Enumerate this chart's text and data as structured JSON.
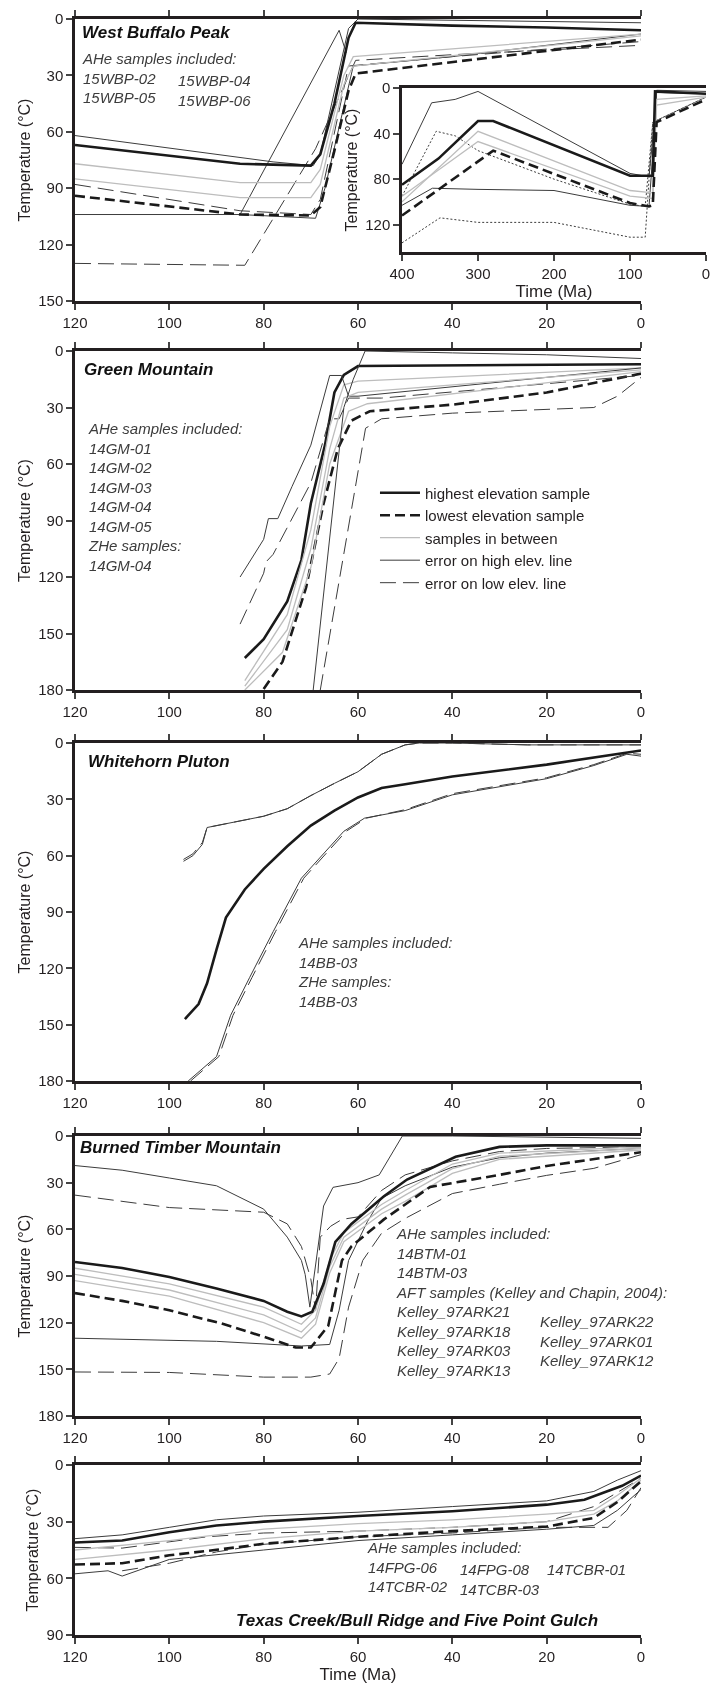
{
  "chart_data": [
    {
      "type": "line",
      "title": "West Buffalo Peak",
      "ylabel": "Temperature (°C)",
      "annotations": [
        "AHe samples included:\n15WBP-02\n15WBP-05",
        "15WBP-04\n15WBP-06"
      ],
      "xlim": [
        120,
        0
      ],
      "ylim": [
        150,
        0
      ],
      "xticks": [
        120,
        100,
        80,
        60,
        40,
        20,
        0
      ],
      "yticks": [
        0,
        30,
        60,
        90,
        120,
        150
      ],
      "series": [
        {
          "color": "#3c3c3c",
          "line_style": "solid",
          "x": [
            120,
            78,
            69.5,
            68,
            62,
            60,
            0
          ],
          "values": [
            62,
            76,
            78,
            72,
            5,
            0,
            2
          ]
        },
        {
          "color": "#3c3c3c",
          "line_style": "solid",
          "x": [
            120,
            85,
            69,
            67,
            61,
            40,
            0
          ],
          "values": [
            104,
            104,
            106,
            90,
            25,
            20,
            8
          ]
        },
        {
          "color": "#3c3c3c",
          "line_style": "solid",
          "x": [
            85,
            64,
            62.5
          ],
          "values": [
            104,
            6,
            18
          ]
        },
        {
          "color": "#3c3c3c",
          "line_style": "dashed",
          "x": [
            120,
            85,
            70,
            68,
            62,
            40,
            0
          ],
          "values": [
            88,
            102,
            104,
            96,
            25,
            20,
            12
          ]
        },
        {
          "color": "#3c3c3c",
          "line_style": "dashed",
          "x": [
            120,
            84,
            69,
            60.5,
            40,
            0
          ],
          "values": [
            130,
            131,
            69,
            22,
            19,
            14
          ]
        },
        {
          "color": "#bdbdbd",
          "line_style": "solid",
          "x": [
            120,
            85,
            70,
            68,
            63,
            61,
            0
          ],
          "values": [
            77,
            87,
            87,
            80,
            30,
            20,
            8
          ]
        },
        {
          "color": "#bdbdbd",
          "line_style": "solid",
          "x": [
            120,
            85,
            70,
            68,
            63,
            61,
            0
          ],
          "values": [
            85,
            95,
            95,
            88,
            35,
            25,
            9
          ]
        },
        {
          "color": "#1a1a1a",
          "line_style": "solid",
          "x": [
            120,
            85,
            70,
            68,
            65,
            62,
            60.5,
            40,
            20,
            0
          ],
          "values": [
            67,
            77,
            78,
            72,
            45,
            10,
            2,
            3.5,
            4.5,
            6
          ]
        },
        {
          "color": "#1a1a1a",
          "line_style": "dashed",
          "x": [
            120,
            85,
            70,
            68,
            65,
            62,
            60.5,
            0
          ],
          "values": [
            94,
            104,
            104.5,
            100,
            70,
            38,
            29,
            11
          ]
        }
      ]
    },
    {
      "type": "line",
      "xlabel": "Time (Ma)",
      "ylabel": "Temperature (°C)",
      "xlim": [
        400,
        0
      ],
      "ylim": [
        144,
        0
      ],
      "xticks": [
        400,
        300,
        200,
        100,
        0
      ],
      "yticks": [
        0,
        40,
        80,
        120
      ],
      "series": [
        {
          "color": "#3c3c3c",
          "line_style": "solid",
          "x": [
            400,
            361,
            330,
            300,
            100,
            75,
            68,
            65,
            0
          ],
          "values": [
            67,
            13,
            10,
            3,
            75,
            78,
            30,
            2,
            3
          ]
        },
        {
          "color": "#3c3c3c",
          "line_style": "solid",
          "x": [
            400,
            360,
            300,
            200,
            100,
            75,
            68,
            65,
            0
          ],
          "values": [
            103,
            88,
            89,
            90,
            103,
            104,
            40,
            4,
            5
          ]
        },
        {
          "color": "#3c3c3c",
          "line_style": "dotted",
          "x": [
            400,
            355,
            330,
            300,
            200,
            100,
            80,
            70,
            0
          ],
          "values": [
            95,
            38,
            42,
            55,
            80,
            102,
            104,
            30,
            8
          ]
        },
        {
          "color": "#3c3c3c",
          "line_style": "dotted",
          "x": [
            400,
            350,
            300,
            200,
            100,
            80,
            70,
            0
          ],
          "values": [
            136,
            114,
            118,
            118,
            131,
            131,
            30,
            8
          ]
        },
        {
          "color": "#bdbdbd",
          "line_style": "solid",
          "x": [
            400,
            300,
            100,
            70,
            65,
            0
          ],
          "values": [
            100,
            38,
            90,
            92,
            10,
            7
          ]
        },
        {
          "color": "#bdbdbd",
          "line_style": "solid",
          "x": [
            400,
            300,
            100,
            70,
            65,
            0
          ],
          "values": [
            95,
            47,
            95,
            97,
            15,
            8
          ]
        },
        {
          "color": "#1a1a1a",
          "line_style": "solid",
          "x": [
            400,
            352,
            300,
            280,
            100,
            80,
            70,
            67,
            0
          ],
          "values": [
            85,
            62,
            29,
            29,
            77,
            77,
            77,
            3,
            5
          ]
        },
        {
          "color": "#1a1a1a",
          "line_style": "dashed",
          "x": [
            400,
            280,
            100,
            75,
            70,
            65,
            0
          ],
          "values": [
            112,
            55,
            101,
            104,
            103,
            30,
            10
          ]
        }
      ]
    },
    {
      "type": "line",
      "title": "Green Mountain",
      "ylabel": "Temperature (°C)",
      "annotations": [
        "AHe samples included:\n14GM-01\n14GM-02\n14GM-03\n14GM-04\n14GM-05\nZHe samples:\n14GM-04"
      ],
      "xlim": [
        120,
        0
      ],
      "ylim": [
        180,
        0
      ],
      "xticks": [
        120,
        100,
        80,
        60,
        40,
        20,
        0
      ],
      "yticks": [
        0,
        30,
        60,
        90,
        120,
        150,
        180
      ],
      "legend": "right",
      "series": [
        {
          "name": "highest elevation sample",
          "color": "#1a1a1a",
          "line_style": "solid",
          "x": [
            84,
            80,
            75,
            72,
            70,
            67,
            65,
            63,
            60,
            0
          ],
          "values": [
            163,
            153,
            133,
            111,
            81,
            50,
            22,
            12.7,
            8,
            7
          ]
        },
        {
          "name": "lowest elevation sample",
          "color": "#1a1a1a",
          "line_style": "dashed",
          "x": [
            80,
            76,
            71,
            67.3,
            64.3,
            61.4,
            57.5,
            40,
            20,
            0
          ],
          "values": [
            179.5,
            165,
            125.5,
            81,
            52,
            37,
            32,
            28.5,
            22,
            12
          ]
        },
        {
          "name": "samples in between",
          "color": "#bdbdbd",
          "line_style": "solid",
          "x": [
            84,
            75,
            70,
            66,
            63,
            60,
            0
          ],
          "values": [
            175,
            140,
            95,
            40,
            18,
            16,
            9
          ]
        },
        {
          "name": "error on high elev. line",
          "color": "#3c3c3c",
          "line_style": "solid",
          "x": [
            85,
            80,
            79,
            77,
            74,
            70,
            66,
            63.5,
            62,
            60,
            0
          ],
          "values": [
            120,
            100,
            89,
            89,
            72,
            50,
            13,
            13,
            24,
            24,
            9
          ]
        },
        {
          "name": "error on low elev. line",
          "color": "#3c3c3c",
          "line_style": "dashed",
          "x": [
            85,
            80,
            79.5,
            78,
            70,
            66,
            64,
            62,
            55,
            0
          ],
          "values": [
            145,
            118,
            112,
            108,
            70,
            36,
            36,
            25,
            25,
            13
          ]
        },
        {
          "color": "#bdbdbd",
          "line_style": "solid",
          "x": [
            84,
            75,
            70,
            66,
            63,
            60,
            0
          ],
          "values": [
            178,
            148,
            105,
            52,
            25,
            22,
            10
          ]
        },
        {
          "color": "#bdbdbd",
          "line_style": "solid",
          "x": [
            84,
            76,
            70,
            66,
            62,
            58,
            0
          ],
          "values": [
            180,
            160,
            115,
            60,
            32,
            28,
            11
          ]
        },
        {
          "color": "#3c3c3c",
          "line_style": "solid",
          "x": [
            69.5,
            63,
            61,
            58.5,
            40,
            20,
            0
          ],
          "values": [
            180,
            30,
            15,
            0,
            1,
            2,
            4
          ]
        },
        {
          "color": "#3c3c3c",
          "line_style": "dashed",
          "x": [
            68,
            58.4,
            55,
            40,
            10,
            5,
            0
          ],
          "values": [
            180,
            41,
            36,
            33,
            30,
            24,
            14
          ]
        }
      ]
    },
    {
      "type": "line",
      "title": "Whitehorn Pluton",
      "ylabel": "Temperature (°C)",
      "annotations": [
        "AHe samples included:\n14BB-03\nZHe samples:\n14BB-03"
      ],
      "xlim": [
        120,
        0
      ],
      "ylim": [
        180,
        0
      ],
      "xticks": [
        120,
        100,
        80,
        60,
        40,
        20,
        0
      ],
      "yticks": [
        0,
        30,
        60,
        90,
        120,
        150,
        180
      ],
      "series": [
        {
          "color": "#3c3c3c",
          "line_style": "solid",
          "x": [
            97,
            95,
            93,
            92,
            88,
            80,
            75,
            70,
            65,
            60,
            55,
            50,
            47,
            40,
            24,
            0
          ],
          "values": [
            63,
            60,
            54,
            45,
            43,
            39,
            35,
            28,
            21.5,
            15.3,
            6,
            1,
            0,
            0,
            1,
            1
          ]
        },
        {
          "color": "#3c3c3c",
          "line_style": "dashed",
          "x": [
            97,
            95,
            93,
            92,
            88,
            80,
            75,
            70,
            65,
            60,
            55,
            50,
            47,
            40,
            24,
            0
          ],
          "values": [
            62,
            59,
            53,
            45,
            43,
            39,
            35,
            28,
            21.5,
            15.3,
            6,
            1,
            0,
            0,
            1,
            1
          ]
        },
        {
          "color": "#3c3c3c",
          "line_style": "solid",
          "x": [
            96,
            90,
            87,
            83,
            78,
            72,
            63,
            58.6,
            50,
            40,
            20,
            10,
            3,
            0
          ],
          "values": [
            180,
            167,
            145,
            125,
            100.5,
            72,
            47,
            40,
            36,
            27.6,
            19,
            12,
            6,
            7
          ]
        },
        {
          "color": "#3c3c3c",
          "line_style": "dashed",
          "x": [
            95.5,
            89.5,
            86.5,
            82.5,
            77.5,
            71.5,
            62.5,
            58.2,
            50,
            40,
            20,
            10,
            3,
            0
          ],
          "values": [
            180,
            167,
            145,
            125,
            100.5,
            72,
            47,
            40,
            35.5,
            27,
            18.5,
            11.5,
            5.5,
            6
          ]
        },
        {
          "color": "#1a1a1a",
          "line_style": "solid",
          "x": [
            96.7,
            93.8,
            92,
            90,
            88,
            84,
            80,
            75,
            70,
            65,
            60,
            55,
            50,
            40,
            20,
            0
          ],
          "values": [
            147,
            139,
            128,
            110,
            93,
            78,
            67,
            55,
            44,
            36,
            29,
            24,
            22,
            17.8,
            11.5,
            4
          ]
        }
      ]
    },
    {
      "type": "line",
      "title": "Burned Timber Mountain",
      "ylabel": "Temperature (°C)",
      "annotations": [
        "AHe samples included:\n14BTM-01\n14BTM-03\nAFT samples (Kelley and Chapin, 2004):\nKelley_97ARK21\nKelley_97ARK18\nKelley_97ARK03\nKelley_97ARK13",
        "Kelley_97ARK22\nKelley_97ARK01\nKelley_97ARK12"
      ],
      "xlim": [
        120,
        0
      ],
      "ylim": [
        180,
        0
      ],
      "xticks": [
        120,
        100,
        80,
        60,
        40,
        20,
        0
      ],
      "yticks": [
        0,
        30,
        60,
        90,
        120,
        150,
        180
      ],
      "series": [
        {
          "color": "#3c3c3c",
          "line_style": "solid",
          "x": [
            120,
            110,
            100,
            90,
            80,
            75,
            72,
            71.2,
            70.2,
            67.3,
            65.3,
            60,
            55.5,
            50.6,
            40,
            0
          ],
          "values": [
            19,
            22,
            27,
            32,
            47,
            65,
            80,
            89,
            110,
            45,
            33,
            30,
            25,
            0,
            0,
            1.5
          ]
        },
        {
          "color": "#3c3c3c",
          "line_style": "solid",
          "x": [
            120,
            90,
            72,
            66,
            64,
            62,
            58,
            55,
            50,
            40,
            30,
            20,
            0
          ],
          "values": [
            130,
            132,
            135,
            134,
            112,
            80,
            55,
            40,
            32,
            20,
            14,
            11,
            8
          ]
        },
        {
          "color": "#3c3c3c",
          "line_style": "dashed",
          "x": [
            120,
            100,
            80,
            75,
            72,
            70,
            69,
            68,
            65.8,
            63.4,
            60,
            55,
            50,
            40,
            30,
            20,
            0
          ],
          "values": [
            38,
            46,
            49,
            56.5,
            71,
            92,
            112,
            65,
            58,
            53.6,
            52,
            35,
            25,
            16,
            10,
            8,
            7
          ]
        },
        {
          "color": "#3c3c3c",
          "line_style": "dashed",
          "x": [
            120,
            100,
            80,
            70,
            66,
            64,
            62,
            59,
            55,
            50,
            40,
            30,
            20,
            10,
            0
          ],
          "values": [
            151.7,
            152,
            155,
            155,
            153,
            143,
            110,
            80,
            62.5,
            53,
            37,
            31,
            25.3,
            20.8,
            12
          ]
        },
        {
          "color": "#bdbdbd",
          "line_style": "solid",
          "x": [
            120,
            100,
            80,
            72,
            69,
            66,
            63,
            55,
            50,
            40,
            30,
            0
          ],
          "values": [
            85,
            95,
            110,
            121,
            112,
            80,
            62,
            44,
            35,
            18,
            11,
            7
          ]
        },
        {
          "color": "#bdbdbd",
          "line_style": "solid",
          "x": [
            120,
            100,
            80,
            72,
            69,
            66,
            63,
            55,
            50,
            40,
            30,
            0
          ],
          "values": [
            89,
            99,
            115,
            126,
            117,
            84,
            65,
            47,
            38,
            21,
            13,
            8
          ]
        },
        {
          "color": "#bdbdbd",
          "line_style": "solid",
          "x": [
            120,
            100,
            80,
            72,
            69,
            66,
            63,
            55,
            50,
            40,
            30,
            0
          ],
          "values": [
            93,
            103,
            120,
            130,
            121,
            88,
            68,
            50,
            42,
            24,
            15,
            9
          ]
        },
        {
          "color": "#1a1a1a",
          "line_style": "solid",
          "x": [
            120,
            110,
            100,
            90,
            80,
            75,
            72,
            69.7,
            67.3,
            64.8,
            61.4,
            54.5,
            49.6,
            39.3,
            30,
            20,
            0
          ],
          "values": [
            81,
            84.8,
            90.7,
            98,
            106,
            113,
            116,
            113,
            95,
            68,
            56.5,
            38.7,
            28,
            13.4,
            7,
            6,
            6
          ]
        },
        {
          "color": "#1a1a1a",
          "line_style": "dashed",
          "x": [
            120,
            110,
            100,
            89,
            80,
            73.2,
            70,
            66.3,
            63.4,
            61.4,
            54.5,
            44.7,
            30,
            20,
            0
          ],
          "values": [
            101,
            106,
            112,
            120.5,
            129,
            136,
            136,
            122,
            80,
            71,
            53.6,
            32.7,
            25,
            19.3,
            10.4
          ]
        }
      ]
    },
    {
      "type": "line",
      "title": "Texas Creek/Bull Ridge and Five Point Gulch",
      "xlabel": "Time (Ma)",
      "ylabel": "Temperature (°C)",
      "annotations": [
        "AHe samples included:\n14FPG-06\n14TCBR-02",
        "14FPG-08\n14TCBR-03",
        "14TCBR-01"
      ],
      "xlim": [
        120,
        0
      ],
      "ylim": [
        90,
        0
      ],
      "xticks": [
        120,
        100,
        80,
        60,
        40,
        20,
        0
      ],
      "yticks": [
        0,
        30,
        60,
        90
      ],
      "series": [
        {
          "color": "#3c3c3c",
          "line_style": "solid",
          "x": [
            120,
            110,
            100,
            90,
            80,
            60,
            40,
            20,
            10,
            5,
            0
          ],
          "values": [
            39,
            37,
            33,
            29,
            27,
            25,
            22,
            19,
            14,
            8,
            3
          ]
        },
        {
          "color": "#3c3c3c",
          "line_style": "solid",
          "x": [
            120,
            113,
            110,
            100,
            80,
            60,
            40,
            20,
            10,
            5,
            0
          ],
          "values": [
            57.6,
            56,
            58.8,
            50,
            45,
            40,
            37,
            34,
            32,
            24,
            13
          ]
        },
        {
          "color": "#3c3c3c",
          "line_style": "dashed",
          "x": [
            120,
            110,
            92,
            80,
            60,
            40,
            20,
            10,
            0
          ],
          "values": [
            43.6,
            44,
            38,
            36,
            35,
            33,
            30,
            22,
            7
          ]
        },
        {
          "color": "#3c3c3c",
          "line_style": "dashed",
          "x": [
            110,
            100,
            90,
            80,
            60,
            40,
            20,
            7,
            3,
            0
          ],
          "values": [
            56,
            52,
            46,
            42,
            38,
            36,
            33,
            33,
            24,
            12
          ]
        },
        {
          "color": "#bdbdbd",
          "line_style": "solid",
          "x": [
            120,
            100,
            80,
            60,
            40,
            20,
            10,
            5,
            0
          ],
          "values": [
            45,
            40,
            34,
            31,
            29,
            26,
            24,
            16,
            7
          ]
        },
        {
          "color": "#bdbdbd",
          "line_style": "solid",
          "x": [
            120,
            100,
            80,
            60,
            40,
            20,
            10,
            5,
            0
          ],
          "values": [
            50,
            45,
            39,
            35,
            33,
            30,
            26,
            19,
            8
          ]
        },
        {
          "color": "#1a1a1a",
          "line_style": "solid",
          "x": [
            120,
            110,
            100,
            90,
            80,
            60,
            40,
            20,
            12,
            8,
            4,
            0
          ],
          "values": [
            41,
            40,
            35.6,
            32,
            30,
            27,
            24.5,
            21,
            18.4,
            14.7,
            11,
            5.6
          ]
        },
        {
          "color": "#1a1a1a",
          "line_style": "dashed",
          "x": [
            120,
            110,
            100,
            90,
            80,
            60,
            40,
            20,
            10,
            5,
            0
          ],
          "values": [
            52.7,
            52,
            47.8,
            44.9,
            41.7,
            38,
            35,
            32.6,
            28,
            19.6,
            8.6
          ]
        }
      ]
    }
  ]
}
